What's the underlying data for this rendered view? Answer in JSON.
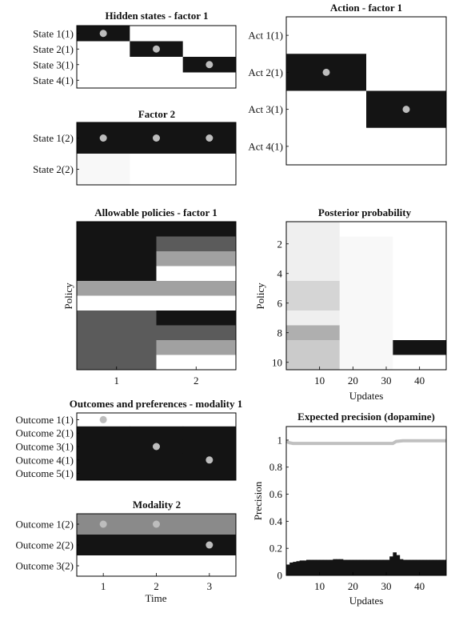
{
  "panels": {
    "hidden_states_f1": {
      "title": "Hidden states - factor 1",
      "row_labels": [
        "State 1(1)",
        "State 2(1)",
        "State 3(1)",
        "State 4(1)"
      ],
      "columns": 3,
      "cells": [
        [
          0,
          1,
          1
        ],
        [
          1,
          0,
          1
        ],
        [
          1,
          1,
          0
        ],
        [
          1,
          1,
          1
        ]
      ],
      "dots": [
        [
          0,
          0
        ],
        [
          1,
          1
        ],
        [
          2,
          2
        ]
      ]
    },
    "factor2": {
      "title": "Factor 2",
      "row_labels": [
        "State 1(2)",
        "State 2(2)"
      ],
      "columns": 3,
      "cells": [
        [
          0,
          0,
          0
        ],
        [
          0.97,
          1,
          1
        ]
      ],
      "dots": [
        [
          0,
          0
        ],
        [
          0,
          1
        ],
        [
          0,
          2
        ]
      ]
    },
    "action_f1": {
      "title": "Action - factor 1",
      "row_labels": [
        "Act 1(1)",
        "Act 2(1)",
        "Act 3(1)",
        "Act 4(1)"
      ],
      "columns": 2,
      "cells": [
        [
          1,
          1
        ],
        [
          0,
          1
        ],
        [
          1,
          0
        ],
        [
          1,
          1
        ]
      ],
      "dots": [
        [
          1,
          0
        ],
        [
          2,
          1
        ]
      ]
    },
    "policies_f1": {
      "title": "Allowable policies - factor 1",
      "ylabel": "Policy",
      "xticks": [
        "1",
        "2"
      ],
      "rows": 10,
      "cells": [
        [
          0,
          0
        ],
        [
          0,
          0.3
        ],
        [
          0,
          0.6
        ],
        [
          0,
          1
        ],
        [
          0.6,
          0.6
        ],
        [
          1,
          1
        ],
        [
          0.3,
          0
        ],
        [
          0.3,
          0.3
        ],
        [
          0.3,
          0.6
        ],
        [
          0.3,
          1
        ]
      ]
    },
    "posterior": {
      "title": "Posterior probability",
      "xlabel": "Updates",
      "ylabel": "Policy",
      "xticks": [
        "10",
        "20",
        "30",
        "40"
      ],
      "yticks": [
        "2",
        "4",
        "6",
        "8",
        "10"
      ],
      "x_range": [
        0,
        48
      ],
      "rows": 10,
      "segments": [
        [
          0.93,
          1.0,
          1.0
        ],
        [
          0.93,
          0.97,
          1.0
        ],
        [
          0.93,
          0.97,
          1.0
        ],
        [
          0.93,
          0.97,
          1.0
        ],
        [
          0.82,
          0.97,
          1.0
        ],
        [
          0.82,
          0.97,
          1.0
        ],
        [
          0.93,
          0.97,
          1.0
        ],
        [
          0.66,
          0.97,
          1.0
        ],
        [
          0.78,
          0.97,
          0.0
        ],
        [
          0.78,
          0.97,
          1.0
        ]
      ],
      "segment_breaks": [
        16,
        32
      ]
    },
    "outcomes_m1": {
      "title": "Outcomes and preferences - modality 1",
      "row_labels": [
        "Outcome 1(1)",
        "Outcome 2(1)",
        "Outcome 3(1)",
        "Outcome 4(1)",
        "Outcome 5(1)"
      ],
      "columns": 3,
      "cells": [
        [
          1,
          1,
          1
        ],
        [
          0,
          0,
          0
        ],
        [
          0,
          0,
          0
        ],
        [
          0,
          0,
          0
        ],
        [
          0,
          0,
          0
        ]
      ],
      "dots": [
        [
          0,
          0
        ],
        [
          2,
          1
        ],
        [
          3,
          2
        ]
      ]
    },
    "modality2": {
      "title": "Modality 2",
      "xlabel": "Time",
      "xticks": [
        "1",
        "2",
        "3"
      ],
      "row_labels": [
        "Outcome 1(2)",
        "Outcome 2(2)",
        "Outcome 3(2)"
      ],
      "columns": 3,
      "cells": [
        [
          0.5,
          0.5,
          0.5
        ],
        [
          0,
          0,
          0
        ],
        [
          1,
          1,
          1
        ]
      ],
      "dots": [
        [
          0,
          0
        ],
        [
          0,
          1
        ],
        [
          1,
          2
        ]
      ]
    },
    "precision": {
      "title": "Expected precision (dopamine)",
      "xlabel": "Updates",
      "ylabel": "Precision",
      "xticks": [
        "10",
        "20",
        "30",
        "40"
      ],
      "yticks": [
        "0",
        "0.2",
        "0.4",
        "0.6",
        "0.8",
        "1"
      ]
    }
  },
  "chart_data": [
    {
      "type": "line",
      "title": "Expected precision (dopamine)",
      "xlabel": "Updates",
      "ylabel": "Precision",
      "xlim": [
        0,
        48
      ],
      "ylim": [
        0,
        1.1
      ],
      "series": [
        {
          "color": "#c0c0c0",
          "x": [
            0,
            1,
            2,
            4,
            10,
            20,
            30,
            32,
            33,
            35,
            40,
            48
          ],
          "y": [
            0.99,
            0.98,
            0.975,
            0.975,
            0.975,
            0.975,
            0.975,
            0.975,
            0.99,
            0.995,
            0.995,
            0.995
          ]
        }
      ],
      "bars": {
        "color": "#141414",
        "x": [
          0,
          1,
          2,
          3,
          4,
          5,
          6,
          7,
          8,
          9,
          10,
          11,
          12,
          13,
          14,
          15,
          16,
          17,
          18,
          19,
          20,
          21,
          22,
          23,
          24,
          25,
          26,
          27,
          28,
          29,
          30,
          31,
          32,
          33,
          34,
          35,
          36,
          37,
          38,
          39,
          40,
          41,
          42,
          43,
          44,
          45,
          46,
          47
        ],
        "y": [
          0.08,
          0.095,
          0.1,
          0.105,
          0.11,
          0.11,
          0.115,
          0.115,
          0.115,
          0.115,
          0.115,
          0.115,
          0.115,
          0.115,
          0.12,
          0.12,
          0.12,
          0.115,
          0.115,
          0.115,
          0.115,
          0.115,
          0.115,
          0.115,
          0.115,
          0.115,
          0.115,
          0.115,
          0.115,
          0.115,
          0.115,
          0.14,
          0.17,
          0.15,
          0.12,
          0.115,
          0.115,
          0.115,
          0.115,
          0.115,
          0.115,
          0.115,
          0.115,
          0.115,
          0.115,
          0.115,
          0.115,
          0.115
        ]
      }
    }
  ]
}
